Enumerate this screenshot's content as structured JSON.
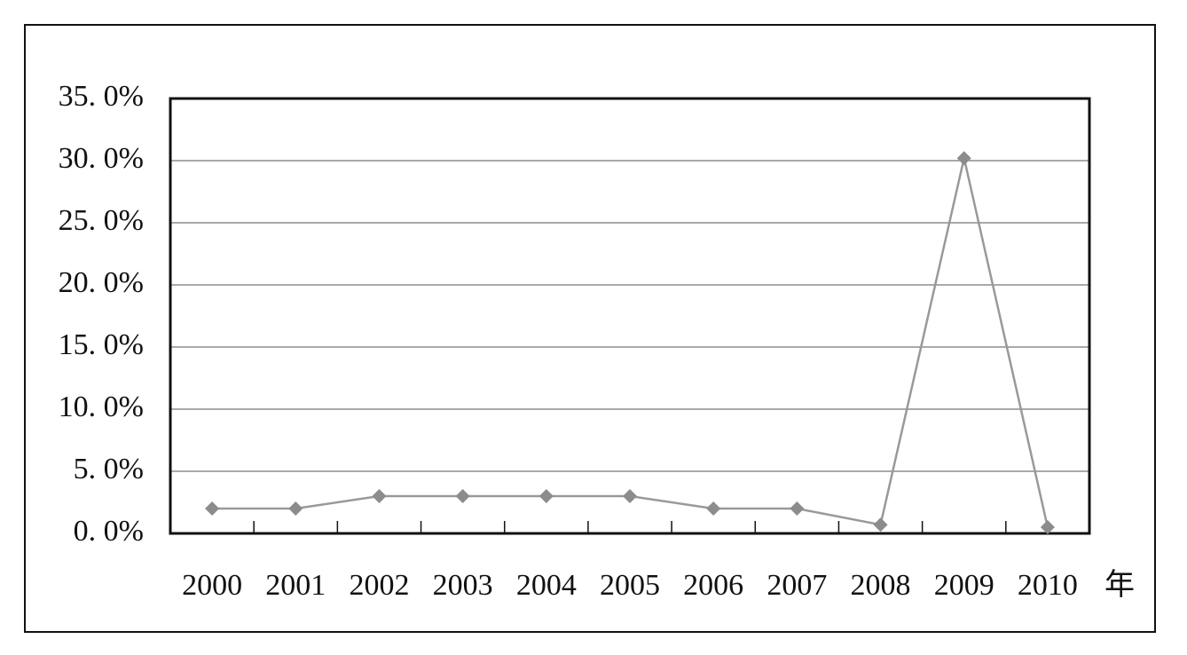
{
  "chart_data": {
    "type": "line",
    "x_label": "年",
    "categories": [
      "2000",
      "2001",
      "2002",
      "2003",
      "2004",
      "2005",
      "2006",
      "2007",
      "2008",
      "2009",
      "2010"
    ],
    "values": [
      2.0,
      2.0,
      3.0,
      3.0,
      3.0,
      3.0,
      2.0,
      2.0,
      0.7,
      30.2,
      0.5
    ],
    "color": "#999999",
    "marker_color": "#8c8c8c",
    "ylim": [
      0,
      35
    ],
    "yticks": [
      {
        "value": 0,
        "label": "0. 0%"
      },
      {
        "value": 5,
        "label": "5. 0%"
      },
      {
        "value": 10,
        "label": "10. 0%"
      },
      {
        "value": 15,
        "label": "15. 0%"
      },
      {
        "value": 20,
        "label": "20. 0%"
      },
      {
        "value": 25,
        "label": "25. 0%"
      },
      {
        "value": 30,
        "label": "30. 0%"
      },
      {
        "value": 35,
        "label": "35. 0%"
      }
    ],
    "grid": true
  }
}
